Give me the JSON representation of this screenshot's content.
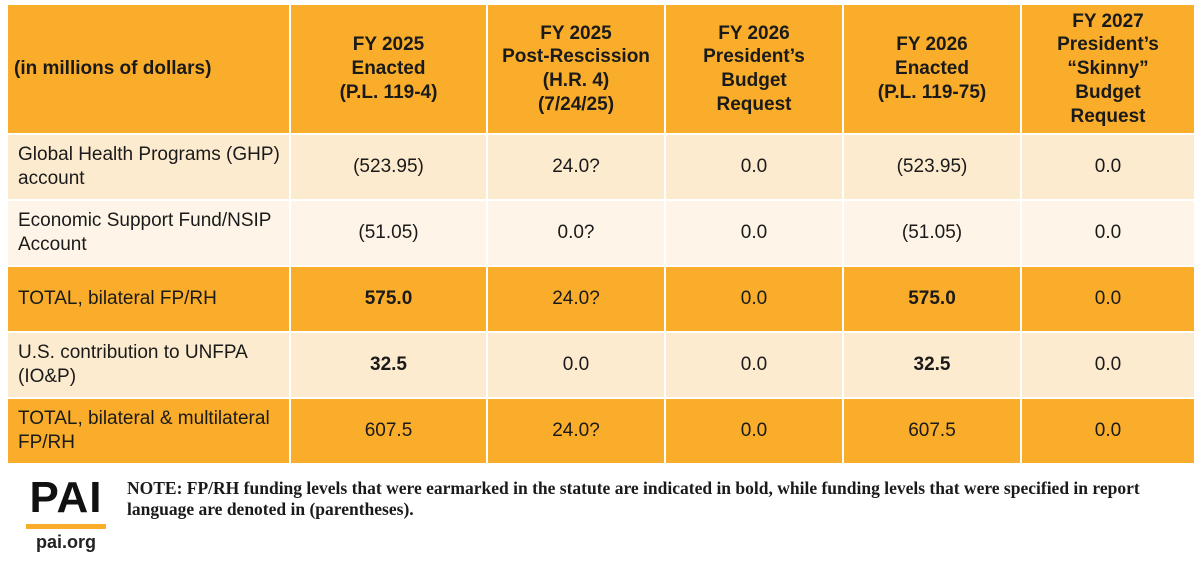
{
  "table": {
    "corner_label": "(in millions of dollars)",
    "columns": [
      {
        "lines": [
          "FY 2025",
          "Enacted",
          "(P.L. 119-4)"
        ]
      },
      {
        "lines": [
          "FY 2025",
          "Post-Rescission",
          "(H.R. 4)",
          "(7/24/25)"
        ]
      },
      {
        "lines": [
          "FY 2026",
          "President’s",
          "Budget",
          "Request"
        ]
      },
      {
        "lines": [
          "FY 2026",
          "Enacted",
          "(P.L. 119-75)"
        ]
      },
      {
        "lines": [
          "FY 2027",
          "President’s",
          "“Skinny”",
          "Budget",
          "Request"
        ]
      }
    ],
    "rows": [
      {
        "label": "Global Health Programs (GHP) account",
        "values": [
          "(523.95)",
          "24.0?",
          "0.0",
          "(523.95)",
          "0.0"
        ],
        "bold": [
          false,
          false,
          false,
          false,
          false
        ]
      },
      {
        "label": "Economic Support Fund/NSIP Account",
        "values": [
          "(51.05)",
          "0.0?",
          "0.0",
          "(51.05)",
          "0.0"
        ],
        "bold": [
          false,
          false,
          false,
          false,
          false
        ]
      },
      {
        "label": "TOTAL, bilateral FP/RH",
        "values": [
          "575.0",
          "24.0?",
          "0.0",
          "575.0",
          "0.0"
        ],
        "bold": [
          true,
          false,
          false,
          true,
          false
        ]
      },
      {
        "label": "U.S. contribution to UNFPA (IO&P)",
        "values": [
          "32.5",
          "0.0",
          "0.0",
          "32.5",
          "0.0"
        ],
        "bold": [
          true,
          false,
          false,
          true,
          false
        ]
      },
      {
        "label": "TOTAL, bilateral & multilateral FP/RH",
        "values": [
          "607.5",
          "24.0?",
          "0.0",
          "607.5",
          "0.0"
        ],
        "bold": [
          false,
          false,
          false,
          false,
          false
        ]
      }
    ]
  },
  "footer": {
    "logo_text": "PAI",
    "logo_url": "pai.org",
    "note": "NOTE: FP/RH funding levels that were earmarked in the statute are indicated in bold, while funding levels that were specified in report language are denoted in (parentheses)."
  },
  "colors": {
    "header_orange": "#f9ad2a",
    "row_light": "#fdebcf",
    "row_lighter": "#fef5e8"
  }
}
